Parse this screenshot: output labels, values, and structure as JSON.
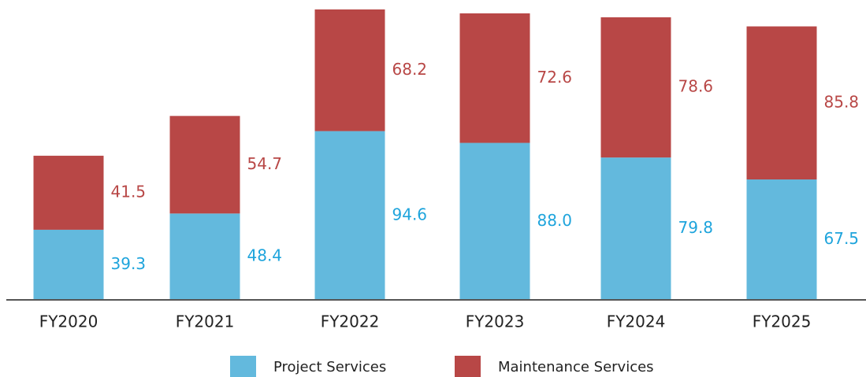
{
  "chart_data": {
    "type": "stacked_bar",
    "categories": [
      "FY2020",
      "FY2021",
      "FY2022",
      "FY2023",
      "FY2024",
      "FY2025"
    ],
    "series": [
      {
        "name": "Project Services",
        "color": "#63b9dd",
        "label_color": "#1ea4dc",
        "values": [
          39.3,
          48.4,
          94.6,
          88.0,
          79.8,
          67.5
        ],
        "value_labels": [
          "39.3",
          "48.4",
          "94.6",
          "88.0",
          "79.8",
          "67.5"
        ]
      },
      {
        "name": "Maintenance Services",
        "color": "#b84746",
        "label_color": "#b84746",
        "values": [
          41.5,
          54.7,
          68.2,
          72.6,
          78.6,
          85.8
        ],
        "value_labels": [
          "41.5",
          "54.7",
          "68.2",
          "72.6",
          "78.6",
          "85.8"
        ]
      }
    ]
  }
}
